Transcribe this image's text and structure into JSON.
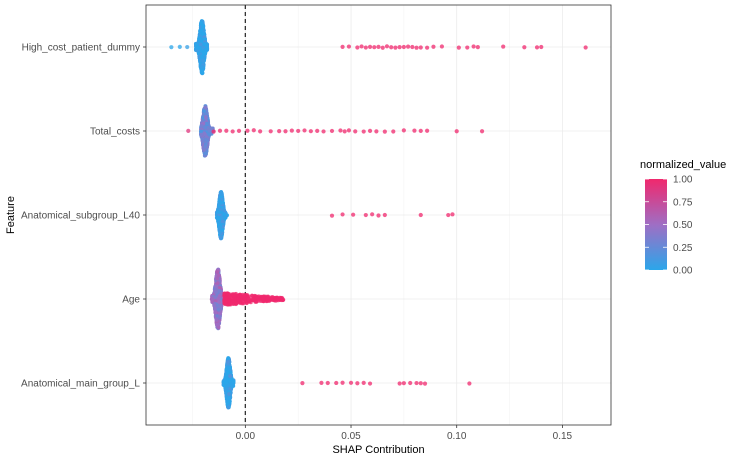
{
  "chart_data": {
    "type": "scatter",
    "subtype": "shap-beeswarm",
    "xlabel": "SHAP Contribution",
    "ylabel": "Feature",
    "xlim": [
      -0.047,
      0.173
    ],
    "x_ticks": [
      0.0,
      0.05,
      0.1,
      0.15
    ],
    "x_tick_labels": [
      "0.00",
      "0.05",
      "0.10",
      "0.15"
    ],
    "zero_line": {
      "x": 0.0,
      "style": "dashed",
      "color": "#333333"
    },
    "grid": true,
    "categories": [
      "High_cost_patient_dummy",
      "Total_costs",
      "Anatomical_subgroup_L40",
      "Age",
      "Anatomical_main_group_L"
    ],
    "colorbar": {
      "title": "normalized_value",
      "low_color": "#2ba6ea",
      "mid_color": "#9f6ec4",
      "high_color": "#f0286d",
      "range": [
        0.0,
        1.0
      ],
      "ticks": [
        "1.00",
        "0.75",
        "0.50",
        "0.25",
        "0.00"
      ],
      "position": "right"
    },
    "series": [
      {
        "feature": "High_cost_patient_dummy",
        "bulk": {
          "center": -0.0205,
          "halfwidth": 0.0025,
          "min": -0.0235,
          "max": -0.018,
          "value": 0.0,
          "spread": 0.32
        },
        "outliers": [
          {
            "x": -0.035,
            "v": 0.0
          },
          {
            "x": -0.031,
            "v": 0.0
          },
          {
            "x": -0.0275,
            "v": 0.05
          },
          {
            "x": 0.046,
            "v": 1
          },
          {
            "x": 0.049,
            "v": 1
          },
          {
            "x": 0.053,
            "v": 1
          },
          {
            "x": 0.055,
            "v": 1
          },
          {
            "x": 0.057,
            "v": 1
          },
          {
            "x": 0.059,
            "v": 1
          },
          {
            "x": 0.061,
            "v": 1
          },
          {
            "x": 0.063,
            "v": 1
          },
          {
            "x": 0.065,
            "v": 1
          },
          {
            "x": 0.067,
            "v": 1
          },
          {
            "x": 0.069,
            "v": 1
          },
          {
            "x": 0.071,
            "v": 1
          },
          {
            "x": 0.073,
            "v": 1
          },
          {
            "x": 0.075,
            "v": 1
          },
          {
            "x": 0.077,
            "v": 1
          },
          {
            "x": 0.079,
            "v": 1
          },
          {
            "x": 0.081,
            "v": 1
          },
          {
            "x": 0.083,
            "v": 1
          },
          {
            "x": 0.086,
            "v": 1
          },
          {
            "x": 0.089,
            "v": 1
          },
          {
            "x": 0.093,
            "v": 1
          },
          {
            "x": 0.101,
            "v": 1
          },
          {
            "x": 0.105,
            "v": 1
          },
          {
            "x": 0.108,
            "v": 1
          },
          {
            "x": 0.11,
            "v": 1
          },
          {
            "x": 0.122,
            "v": 1
          },
          {
            "x": 0.132,
            "v": 1
          },
          {
            "x": 0.138,
            "v": 1
          },
          {
            "x": 0.14,
            "v": 1
          },
          {
            "x": 0.161,
            "v": 1
          }
        ]
      },
      {
        "feature": "Total_costs",
        "bulk": {
          "center": -0.019,
          "halfwidth": 0.0022,
          "min": -0.021,
          "max": -0.015,
          "value": 0.3,
          "spread": 0.3
        },
        "outliers": [
          {
            "x": -0.027,
            "v": 0.9
          },
          {
            "x": -0.015,
            "v": 1
          },
          {
            "x": -0.012,
            "v": 1
          },
          {
            "x": -0.009,
            "v": 1
          },
          {
            "x": -0.006,
            "v": 1
          },
          {
            "x": -0.003,
            "v": 1
          },
          {
            "x": 0.001,
            "v": 1
          },
          {
            "x": 0.004,
            "v": 1
          },
          {
            "x": 0.007,
            "v": 1
          },
          {
            "x": 0.012,
            "v": 1
          },
          {
            "x": 0.016,
            "v": 1
          },
          {
            "x": 0.019,
            "v": 1
          },
          {
            "x": 0.022,
            "v": 1
          },
          {
            "x": 0.025,
            "v": 1
          },
          {
            "x": 0.028,
            "v": 1
          },
          {
            "x": 0.031,
            "v": 1
          },
          {
            "x": 0.034,
            "v": 1
          },
          {
            "x": 0.037,
            "v": 1
          },
          {
            "x": 0.041,
            "v": 1
          },
          {
            "x": 0.045,
            "v": 1
          },
          {
            "x": 0.047,
            "v": 1
          },
          {
            "x": 0.049,
            "v": 1
          },
          {
            "x": 0.052,
            "v": 1
          },
          {
            "x": 0.056,
            "v": 1
          },
          {
            "x": 0.059,
            "v": 1
          },
          {
            "x": 0.062,
            "v": 1
          },
          {
            "x": 0.066,
            "v": 1
          },
          {
            "x": 0.07,
            "v": 1
          },
          {
            "x": 0.075,
            "v": 1
          },
          {
            "x": 0.08,
            "v": 1
          },
          {
            "x": 0.083,
            "v": 1
          },
          {
            "x": 0.086,
            "v": 1
          },
          {
            "x": 0.1,
            "v": 1
          },
          {
            "x": 0.112,
            "v": 1
          }
        ]
      },
      {
        "feature": "Anatomical_subgroup_L40",
        "bulk": {
          "center": -0.0115,
          "halfwidth": 0.0016,
          "min": -0.0135,
          "max": -0.0085,
          "value": 0.0,
          "spread": 0.28
        },
        "outliers": [
          {
            "x": 0.041,
            "v": 1
          },
          {
            "x": 0.046,
            "v": 1
          },
          {
            "x": 0.051,
            "v": 1
          },
          {
            "x": 0.057,
            "v": 1
          },
          {
            "x": 0.06,
            "v": 1
          },
          {
            "x": 0.063,
            "v": 1
          },
          {
            "x": 0.066,
            "v": 1
          },
          {
            "x": 0.083,
            "v": 1
          },
          {
            "x": 0.096,
            "v": 1
          },
          {
            "x": 0.098,
            "v": 1
          }
        ]
      },
      {
        "feature": "Age",
        "bulk": {
          "center": -0.013,
          "halfwidth": 0.0022,
          "min": -0.016,
          "max": -0.01,
          "value": 0.45,
          "spread": 0.36
        },
        "tail": {
          "from": -0.01,
          "to": 0.018,
          "value": 1
        },
        "outliers": []
      },
      {
        "feature": "Anatomical_main_group_L",
        "bulk": {
          "center": -0.008,
          "halfwidth": 0.0018,
          "min": -0.0105,
          "max": -0.0055,
          "value": 0.0,
          "spread": 0.3
        },
        "outliers": [
          {
            "x": 0.027,
            "v": 1
          },
          {
            "x": 0.036,
            "v": 1
          },
          {
            "x": 0.039,
            "v": 1
          },
          {
            "x": 0.043,
            "v": 1
          },
          {
            "x": 0.046,
            "v": 1
          },
          {
            "x": 0.05,
            "v": 1
          },
          {
            "x": 0.053,
            "v": 1
          },
          {
            "x": 0.056,
            "v": 1
          },
          {
            "x": 0.059,
            "v": 1
          },
          {
            "x": 0.073,
            "v": 1
          },
          {
            "x": 0.075,
            "v": 1
          },
          {
            "x": 0.078,
            "v": 1
          },
          {
            "x": 0.081,
            "v": 1
          },
          {
            "x": 0.083,
            "v": 1
          },
          {
            "x": 0.085,
            "v": 1
          },
          {
            "x": 0.106,
            "v": 1
          }
        ]
      }
    ]
  }
}
